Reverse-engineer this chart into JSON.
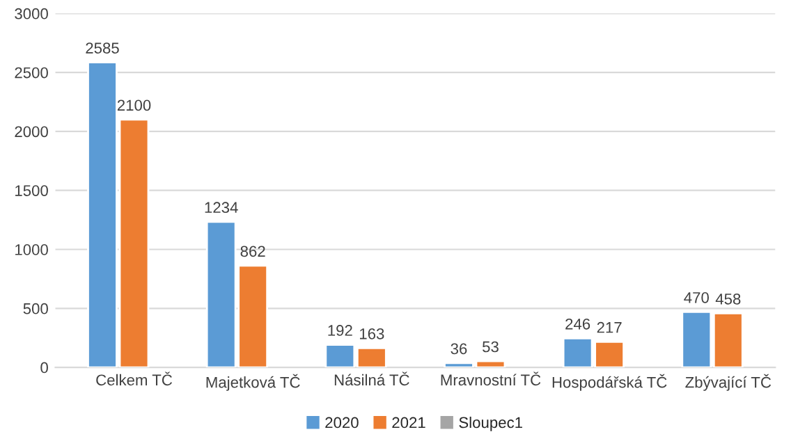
{
  "chart_data": {
    "type": "bar",
    "categories": [
      "Celkem TČ",
      "Majetková TČ",
      "Násilná TČ",
      "Mravnostní TČ",
      "Hospodářská TČ",
      "Zbývající TČ"
    ],
    "series": [
      {
        "name": "2020",
        "color": "#5b9bd5",
        "values": [
          2585,
          1234,
          192,
          36,
          246,
          470
        ]
      },
      {
        "name": "2021",
        "color": "#ed7d31",
        "values": [
          2100,
          862,
          163,
          53,
          217,
          458
        ]
      },
      {
        "name": "Sloupec1",
        "color": "#a5a5a5",
        "values": [
          null,
          null,
          null,
          null,
          null,
          null
        ]
      }
    ],
    "ylim": [
      0,
      3000
    ],
    "yticks": [
      0,
      500,
      1000,
      1500,
      2000,
      2500,
      3000
    ],
    "grid": "y",
    "legend": "bottom",
    "data_labels": true
  }
}
